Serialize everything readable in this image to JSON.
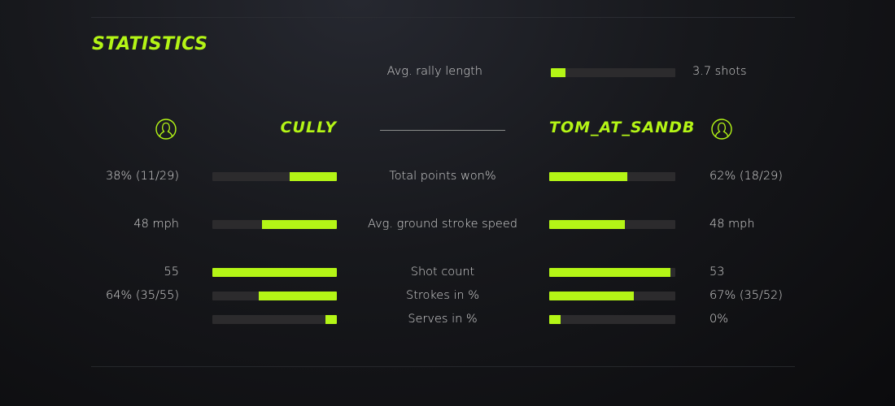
{
  "title": "STATISTICS",
  "accent": "#b4f516",
  "rally": {
    "label": "Avg. rally length",
    "value": "3.7 shots",
    "fraction": 0.12
  },
  "players": {
    "left": {
      "name": "CULLY",
      "icon": "user-circle-icon"
    },
    "right": {
      "name": "TOM_AT_SANDB",
      "icon": "user-circle-icon"
    }
  },
  "stats": [
    {
      "label": "Total points won%",
      "left": "38% (11/29)",
      "right": "62% (18/29)",
      "left_fraction": 0.38,
      "right_fraction": 0.62
    },
    {
      "label": "Avg. ground stroke speed",
      "left": "48 mph",
      "right": "48 mph",
      "left_fraction": 0.6,
      "right_fraction": 0.6
    },
    {
      "label": "Shot count",
      "left": "55",
      "right": "53",
      "left_fraction": 1.0,
      "right_fraction": 0.96
    },
    {
      "label": "Strokes in %",
      "left": "64% (35/55)",
      "right": "67% (35/52)",
      "left_fraction": 0.63,
      "right_fraction": 0.67
    },
    {
      "label": "Serves in %",
      "left": "",
      "right": "0%",
      "left_fraction": 0.09,
      "right_fraction": 0.09
    }
  ]
}
